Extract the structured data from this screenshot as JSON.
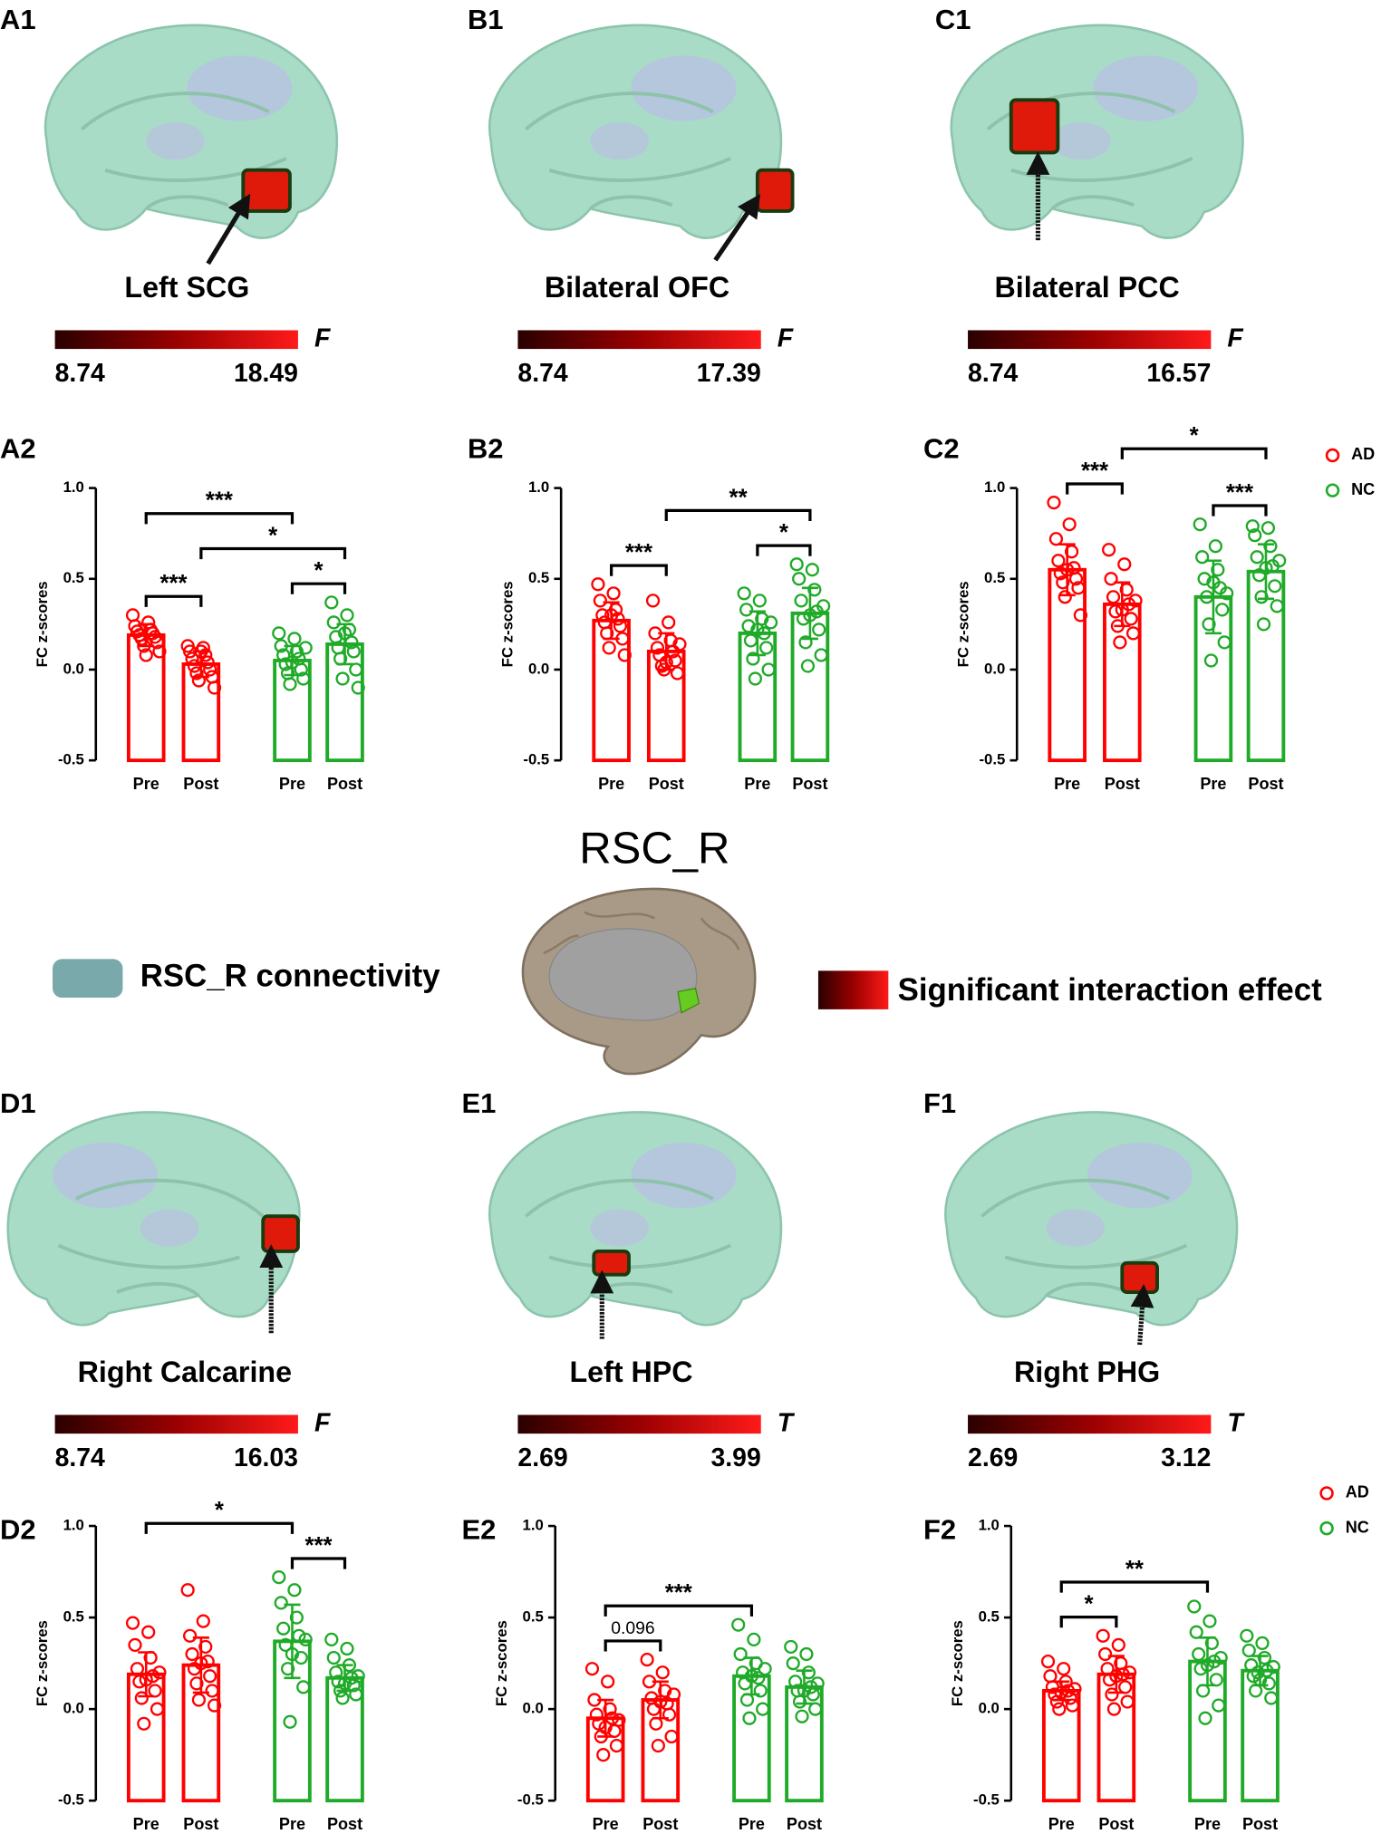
{
  "panels": [
    {
      "label": "A1",
      "region": "Left SCG",
      "colorbar": {
        "min": 8.74,
        "max": 18.49,
        "stat": "F"
      }
    },
    {
      "label": "B1",
      "region": "Bilateral OFC",
      "colorbar": {
        "min": 8.74,
        "max": 17.39,
        "stat": "F"
      }
    },
    {
      "label": "C1",
      "region": "Bilateral PCC",
      "colorbar": {
        "min": 8.74,
        "max": 16.57,
        "stat": "F"
      }
    },
    {
      "label": "D1",
      "region": "Right Calcarine",
      "colorbar": {
        "min": 8.74,
        "max": 16.03,
        "stat": "F"
      }
    },
    {
      "label": "E1",
      "region": "Left HPC",
      "colorbar": {
        "min": 2.69,
        "max": 3.99,
        "stat": "T"
      }
    },
    {
      "label": "F1",
      "region": "Right PHG",
      "colorbar": {
        "min": 2.69,
        "max": 3.12,
        "stat": "T"
      }
    }
  ],
  "center": {
    "title": "RSC_R",
    "legend_connectivity": "RSC_R connectivity",
    "legend_interaction": "Significant interaction effect"
  },
  "chart_data": [
    {
      "type": "bar",
      "panel": "A2",
      "ylabel": "FC z-scores",
      "ylim": [
        -0.5,
        1
      ],
      "yticks": [
        -0.5,
        {
          "value": 0,
          "label": "0.0"
        },
        0.5,
        {
          "value": 1,
          "label": "1.0"
        }
      ],
      "series": [
        {
          "color": "#ff0000",
          "categories": [
            "Pre",
            "Post"
          ],
          "values": [
            0.19,
            0.03
          ],
          "errors": [
            0.06,
            0.07
          ],
          "points": [
            [
              0.3,
              0.26,
              0.24,
              0.22,
              0.21,
              0.2,
              0.19,
              0.18,
              0.17,
              0.15,
              0.13,
              0.1,
              0.08
            ],
            [
              0.13,
              0.12,
              0.1,
              0.08,
              0.06,
              0.04,
              0.02,
              0.0,
              -0.02,
              -0.04,
              -0.06,
              -0.1,
              0.1
            ]
          ]
        },
        {
          "color": "#1faa28",
          "categories": [
            "Pre",
            "Post"
          ],
          "values": [
            0.05,
            0.14
          ],
          "errors": [
            0.08,
            0.11
          ],
          "points": [
            [
              0.2,
              0.17,
              0.13,
              0.1,
              0.08,
              0.06,
              0.03,
              0.0,
              -0.02,
              -0.05,
              -0.08,
              0.12,
              0.04
            ],
            [
              0.37,
              0.3,
              0.26,
              0.22,
              0.18,
              0.15,
              0.12,
              0.1,
              0.06,
              0.0,
              -0.05,
              -0.1,
              0.2
            ]
          ]
        }
      ],
      "brackets": [
        {
          "text": "***",
          "between": [
            0,
            1
          ]
        },
        {
          "text": "*",
          "between": [
            2,
            3
          ]
        },
        {
          "text": "*",
          "between": [
            1,
            3
          ]
        },
        {
          "text": "***",
          "between": [
            0,
            2
          ]
        }
      ]
    },
    {
      "type": "bar",
      "panel": "B2",
      "ylabel": "FC z-scores",
      "ylim": [
        -0.5,
        1
      ],
      "yticks": [
        -0.5,
        {
          "value": 0,
          "label": "0.0"
        },
        0.5,
        {
          "value": 1,
          "label": "1.0"
        }
      ],
      "series": [
        {
          "color": "#ff0000",
          "categories": [
            "Pre",
            "Post"
          ],
          "values": [
            0.27,
            0.1
          ],
          "errors": [
            0.1,
            0.1
          ],
          "points": [
            [
              0.47,
              0.42,
              0.38,
              0.33,
              0.3,
              0.28,
              0.26,
              0.24,
              0.2,
              0.17,
              0.12,
              0.08,
              0.3
            ],
            [
              0.38,
              0.26,
              0.2,
              0.16,
              0.12,
              0.1,
              0.08,
              0.05,
              0.02,
              -0.02,
              0.0,
              0.14,
              0.04
            ]
          ]
        },
        {
          "color": "#1faa28",
          "categories": [
            "Pre",
            "Post"
          ],
          "values": [
            0.2,
            0.31
          ],
          "errors": [
            0.12,
            0.14
          ],
          "points": [
            [
              0.42,
              0.38,
              0.33,
              0.28,
              0.24,
              0.2,
              0.16,
              0.12,
              0.06,
              0.0,
              -0.05,
              0.26,
              0.22
            ],
            [
              0.58,
              0.55,
              0.5,
              0.44,
              0.38,
              0.32,
              0.28,
              0.22,
              0.15,
              0.08,
              0.02,
              0.35,
              0.3
            ]
          ]
        }
      ],
      "brackets": [
        {
          "text": "***",
          "between": [
            0,
            1
          ]
        },
        {
          "text": "*",
          "between": [
            2,
            3
          ]
        },
        {
          "text": "**",
          "between": [
            1,
            3
          ]
        }
      ]
    },
    {
      "type": "bar",
      "panel": "C2",
      "ylabel": "FC z-scores",
      "ylim": [
        -0.5,
        1
      ],
      "yticks": [
        -0.5,
        {
          "value": 0,
          "label": "0.0"
        },
        0.5,
        {
          "value": 1,
          "label": "1.0"
        }
      ],
      "legend": true,
      "series": [
        {
          "name": "AD",
          "color": "#ff0000",
          "categories": [
            "Pre",
            "Post"
          ],
          "values": [
            0.55,
            0.36
          ],
          "errors": [
            0.14,
            0.12
          ],
          "points": [
            [
              0.92,
              0.8,
              0.72,
              0.65,
              0.6,
              0.56,
              0.53,
              0.5,
              0.48,
              0.45,
              0.4,
              0.3,
              0.55
            ],
            [
              0.66,
              0.58,
              0.5,
              0.44,
              0.4,
              0.36,
              0.32,
              0.28,
              0.24,
              0.2,
              0.15,
              0.38,
              0.33
            ]
          ]
        },
        {
          "name": "NC",
          "color": "#1faa28",
          "categories": [
            "Pre",
            "Post"
          ],
          "values": [
            0.4,
            0.54
          ],
          "errors": [
            0.2,
            0.15
          ],
          "points": [
            [
              0.8,
              0.68,
              0.62,
              0.55,
              0.5,
              0.45,
              0.4,
              0.33,
              0.25,
              0.15,
              0.05,
              0.42,
              0.48
            ],
            [
              0.79,
              0.78,
              0.74,
              0.68,
              0.62,
              0.57,
              0.52,
              0.46,
              0.4,
              0.35,
              0.25,
              0.6,
              0.56
            ]
          ]
        }
      ],
      "brackets": [
        {
          "text": "***",
          "between": [
            0,
            1
          ]
        },
        {
          "text": "***",
          "between": [
            2,
            3
          ]
        },
        {
          "text": "*",
          "between": [
            1,
            3
          ]
        }
      ]
    },
    {
      "type": "bar",
      "panel": "D2",
      "ylabel": "FC z-scores",
      "ylim": [
        -0.5,
        1
      ],
      "yticks": [
        -0.5,
        {
          "value": 0,
          "label": "0.0"
        },
        0.5,
        {
          "value": 1,
          "label": "1.0"
        }
      ],
      "series": [
        {
          "color": "#ff0000",
          "categories": [
            "Pre",
            "Post"
          ],
          "values": [
            0.19,
            0.24
          ],
          "errors": [
            0.12,
            0.15
          ],
          "points": [
            [
              0.47,
              0.42,
              0.35,
              0.28,
              0.22,
              0.18,
              0.15,
              0.1,
              0.06,
              0.0,
              -0.08,
              0.2,
              0.16
            ],
            [
              0.65,
              0.48,
              0.4,
              0.34,
              0.3,
              0.26,
              0.22,
              0.18,
              0.14,
              0.1,
              0.05,
              0.02,
              0.25
            ]
          ]
        },
        {
          "color": "#1faa28",
          "categories": [
            "Pre",
            "Post"
          ],
          "values": [
            0.37,
            0.17
          ],
          "errors": [
            0.2,
            0.07
          ],
          "points": [
            [
              0.72,
              0.65,
              0.58,
              0.5,
              0.44,
              0.4,
              0.35,
              0.28,
              0.22,
              0.12,
              -0.07,
              0.38,
              0.3
            ],
            [
              0.38,
              0.33,
              0.28,
              0.24,
              0.2,
              0.17,
              0.15,
              0.13,
              0.1,
              0.08,
              0.06,
              0.18,
              0.14
            ]
          ]
        }
      ],
      "brackets": [
        {
          "text": "***",
          "between": [
            2,
            3
          ]
        },
        {
          "text": "*",
          "between": [
            0,
            2
          ]
        }
      ]
    },
    {
      "type": "bar",
      "panel": "E2",
      "ylabel": "FC z-scores",
      "ylim": [
        -0.5,
        1
      ],
      "yticks": [
        -0.5,
        {
          "value": 0,
          "label": "0.0"
        },
        0.5,
        {
          "value": 1,
          "label": "1.0"
        }
      ],
      "series": [
        {
          "color": "#ff0000",
          "categories": [
            "Pre",
            "Post"
          ],
          "values": [
            -0.05,
            0.05
          ],
          "errors": [
            0.1,
            0.1
          ],
          "points": [
            [
              0.22,
              0.15,
              0.05,
              0.0,
              -0.03,
              -0.05,
              -0.08,
              -0.12,
              -0.15,
              -0.2,
              -0.25,
              -0.06,
              -0.1
            ],
            [
              0.27,
              0.2,
              0.15,
              0.1,
              0.06,
              0.03,
              0.0,
              -0.03,
              -0.08,
              -0.15,
              -0.2,
              0.08,
              0.04
            ]
          ]
        },
        {
          "color": "#1faa28",
          "categories": [
            "Pre",
            "Post"
          ],
          "values": [
            0.18,
            0.12
          ],
          "errors": [
            0.1,
            0.09
          ],
          "points": [
            [
              0.46,
              0.38,
              0.3,
              0.25,
              0.2,
              0.17,
              0.14,
              0.1,
              0.05,
              0.0,
              -0.05,
              0.22,
              0.18
            ],
            [
              0.34,
              0.3,
              0.25,
              0.2,
              0.15,
              0.12,
              0.1,
              0.08,
              0.04,
              0.0,
              -0.04,
              0.14,
              0.1
            ]
          ]
        }
      ],
      "brackets": [
        {
          "text": "0.096",
          "between": [
            0,
            1
          ]
        },
        {
          "text": "***",
          "between": [
            0,
            2
          ]
        }
      ]
    },
    {
      "type": "bar",
      "panel": "F2",
      "ylabel": "FC z-scores",
      "ylim": [
        -0.5,
        1
      ],
      "yticks": [
        -0.5,
        {
          "value": 0,
          "label": "0.0"
        },
        0.5,
        {
          "value": 1,
          "label": "1.0"
        }
      ],
      "legend": true,
      "series": [
        {
          "name": "AD",
          "color": "#ff0000",
          "categories": [
            "Pre",
            "Post"
          ],
          "values": [
            0.1,
            0.19
          ],
          "errors": [
            0.05,
            0.1
          ],
          "points": [
            [
              0.26,
              0.22,
              0.18,
              0.15,
              0.12,
              0.1,
              0.08,
              0.06,
              0.04,
              0.02,
              0.0,
              0.11,
              0.09
            ],
            [
              0.4,
              0.35,
              0.3,
              0.25,
              0.22,
              0.19,
              0.16,
              0.12,
              0.08,
              0.04,
              0.0,
              0.2,
              0.18
            ]
          ]
        },
        {
          "name": "NC",
          "color": "#1faa28",
          "categories": [
            "Pre",
            "Post"
          ],
          "values": [
            0.26,
            0.21
          ],
          "errors": [
            0.13,
            0.08
          ],
          "points": [
            [
              0.56,
              0.48,
              0.42,
              0.36,
              0.3,
              0.26,
              0.22,
              0.16,
              0.1,
              0.02,
              -0.05,
              0.28,
              0.24
            ],
            [
              0.4,
              0.36,
              0.32,
              0.28,
              0.24,
              0.21,
              0.18,
              0.14,
              0.1,
              0.06,
              0.2,
              0.23,
              0.16
            ]
          ]
        }
      ],
      "brackets": [
        {
          "text": "*",
          "between": [
            0,
            1
          ]
        },
        {
          "text": "**",
          "between": [
            0,
            2
          ]
        }
      ]
    }
  ]
}
